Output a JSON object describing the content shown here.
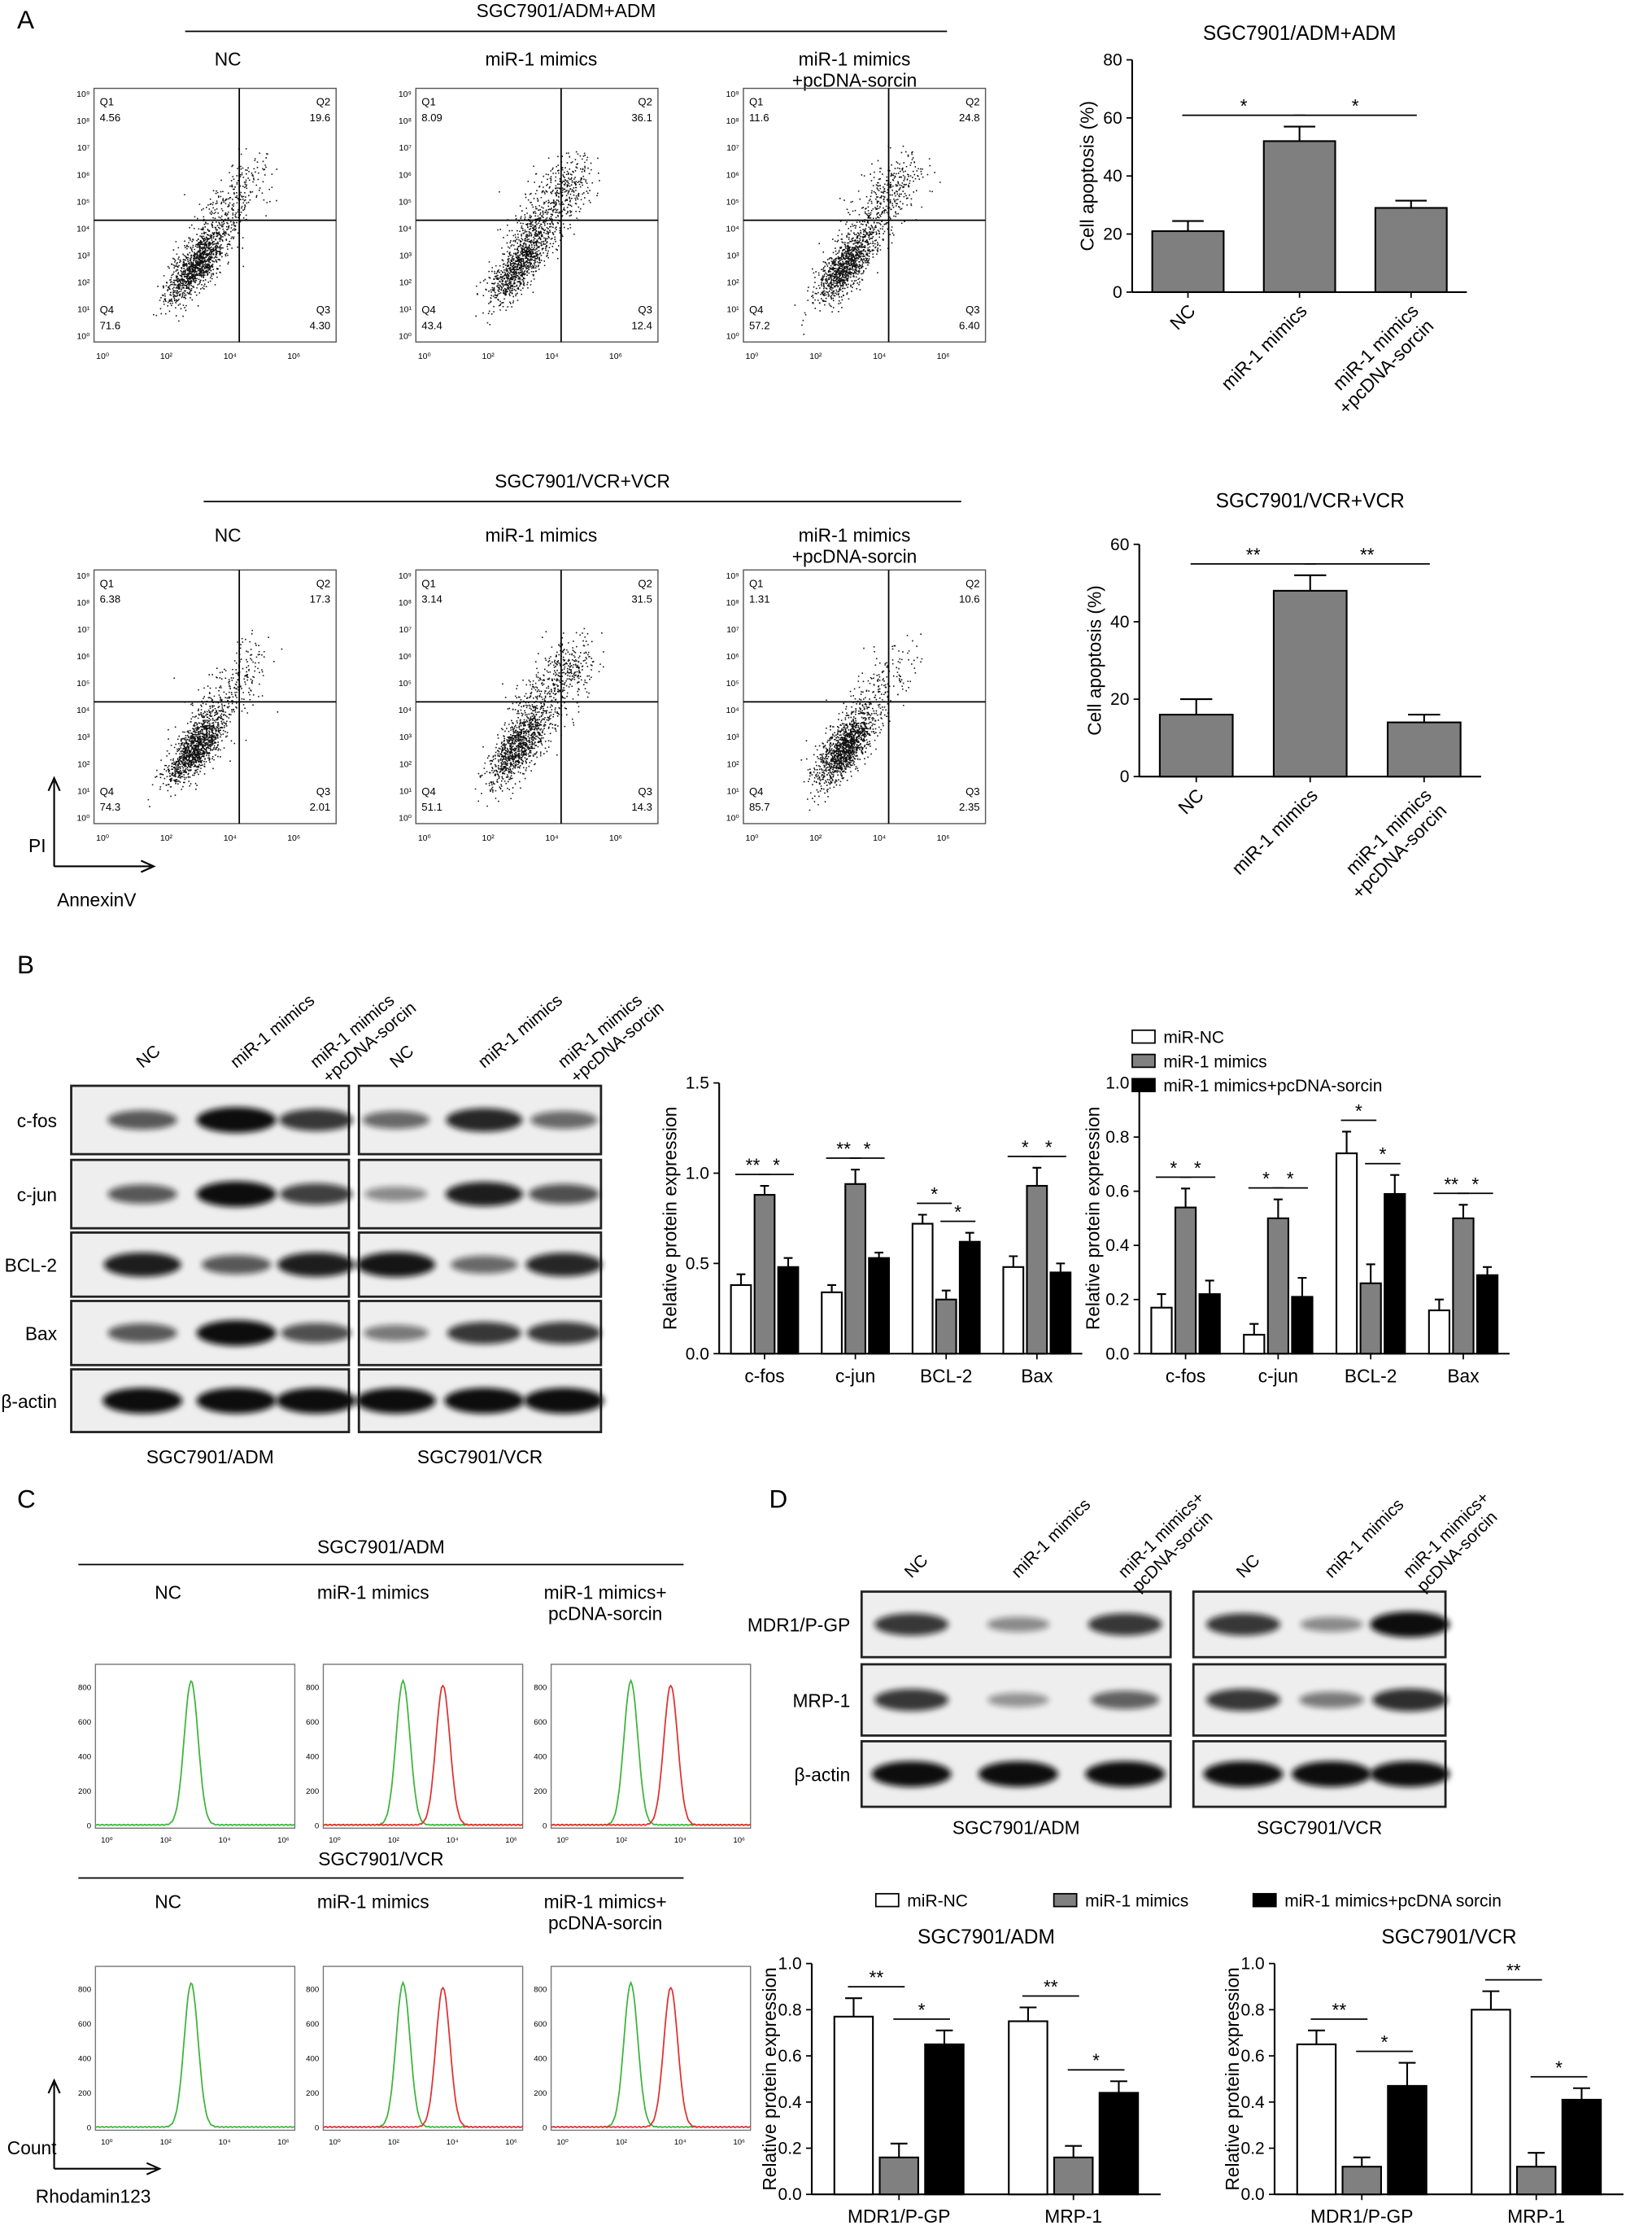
{
  "panel_labels": [
    "A",
    "B",
    "C",
    "D"
  ],
  "panel_a": {
    "y_axis": "PI",
    "x_axis": "AnnexinV",
    "xticks": [
      "10⁰",
      "10²",
      "10⁴",
      "10⁶"
    ],
    "yticks": [
      "10⁰",
      "10¹",
      "10²",
      "10³",
      "10⁴",
      "10⁵",
      "10⁶",
      "10⁷",
      "10⁸",
      "10⁹"
    ],
    "groups": [
      {
        "title": "SGC7901/ADM+ADM",
        "conditions": [
          "NC",
          "miR-1 mimics",
          "miR-1 mimics\n+pcDNA-sorcin"
        ],
        "plots": [
          {
            "quadrants": [
              {
                "name": "Q1",
                "value": "4.56"
              },
              {
                "name": "Q2",
                "value": "19.6"
              },
              {
                "name": "Q4",
                "value": "71.6"
              },
              {
                "name": "Q3",
                "value": "4.30"
              }
            ]
          },
          {
            "quadrants": [
              {
                "name": "Q1",
                "value": "8.09"
              },
              {
                "name": "Q2",
                "value": "36.1"
              },
              {
                "name": "Q4",
                "value": "43.4"
              },
              {
                "name": "Q3",
                "value": "12.4"
              }
            ]
          },
          {
            "quadrants": [
              {
                "name": "Q1",
                "value": "11.6"
              },
              {
                "name": "Q2",
                "value": "24.8"
              },
              {
                "name": "Q4",
                "value": "57.2"
              },
              {
                "name": "Q3",
                "value": "6.40"
              }
            ]
          }
        ]
      },
      {
        "title": "SGC7901/VCR+VCR",
        "conditions": [
          "NC",
          "miR-1 mimics",
          "miR-1 mimics\n+pcDNA-sorcin"
        ],
        "plots": [
          {
            "quadrants": [
              {
                "name": "Q1",
                "value": "6.38"
              },
              {
                "name": "Q2",
                "value": "17.3"
              },
              {
                "name": "Q4",
                "value": "74.3"
              },
              {
                "name": "Q3",
                "value": "2.01"
              }
            ]
          },
          {
            "quadrants": [
              {
                "name": "Q1",
                "value": "3.14"
              },
              {
                "name": "Q2",
                "value": "31.5"
              },
              {
                "name": "Q4",
                "value": "51.1"
              },
              {
                "name": "Q3",
                "value": "14.3"
              }
            ]
          },
          {
            "quadrants": [
              {
                "name": "Q1",
                "value": "1.31"
              },
              {
                "name": "Q2",
                "value": "10.6"
              },
              {
                "name": "Q4",
                "value": "85.7"
              },
              {
                "name": "Q3",
                "value": "2.35"
              }
            ]
          }
        ]
      }
    ]
  },
  "panel_b": {
    "lanes": [
      "NC",
      "miR-1 mimics",
      "miR-1 mimics\n+pcDNA-sorcin"
    ],
    "proteins": [
      "c-fos",
      "c-jun",
      "BCL-2",
      "Bax",
      "β-actin"
    ],
    "cell_lines": [
      "SGC7901/ADM",
      "SGC7901/VCR"
    ]
  },
  "panel_c": {
    "y_axis": "Count",
    "x_axis": "Rhodamin123",
    "xticks": [
      "10⁰",
      "10²",
      "10⁴",
      "10⁶"
    ],
    "yticks": [
      "0",
      "200",
      "400",
      "600",
      "800"
    ],
    "groups": [
      {
        "title": "SGC7901/ADM",
        "conditions": [
          "NC",
          "miR-1 mimics",
          "miR-1 mimics+\npcDNA-sorcin"
        ]
      },
      {
        "title": "SGC7901/VCR",
        "conditions": [
          "NC",
          "miR-1 mimics",
          "miR-1 mimics+\npcDNA-sorcin"
        ]
      }
    ]
  },
  "panel_d": {
    "lanes": [
      "NC",
      "miR-1 mimics",
      "miR-1 mimics+\npcDNA-sorcin"
    ],
    "proteins": [
      "MDR1/P-GP",
      "MRP-1",
      "β-actin"
    ],
    "cell_lines": [
      "SGC7901/ADM",
      "SGC7901/VCR"
    ]
  },
  "chart_data": [
    {
      "type": "bar",
      "title": "SGC7901/ADM+ADM",
      "y_label": "Cell apoptosis (%)",
      "categories": [
        "NC",
        "miR-1 mimics",
        "miR-1 mimics\n+pcDNA-sorcin"
      ],
      "values": [
        21,
        52,
        29
      ],
      "errors": [
        3.5,
        5,
        2.5
      ],
      "color": "#7f7f7f",
      "ylim": [
        0,
        80
      ],
      "yticks": [
        0,
        20,
        40,
        60,
        80
      ],
      "annotations": [
        "*",
        "*"
      ]
    },
    {
      "type": "bar",
      "title": "SGC7901/VCR+VCR",
      "y_label": "Cell apoptosis (%)",
      "categories": [
        "NC",
        "miR-1 mimics",
        "miR-1 mimics\n+pcDNA-sorcin"
      ],
      "values": [
        16,
        48,
        14
      ],
      "errors": [
        4,
        4,
        2
      ],
      "color": "#7f7f7f",
      "ylim": [
        0,
        60
      ],
      "yticks": [
        0,
        20,
        40,
        60
      ],
      "annotations": [
        "**",
        "**"
      ]
    },
    {
      "type": "bar",
      "y_label": "Relative protein expression",
      "categories": [
        "c-fos",
        "c-jun",
        "BCL-2",
        "Bax"
      ],
      "series": [
        {
          "name": "miR-NC",
          "color": "#ffffff",
          "values": [
            0.38,
            0.34,
            0.72,
            0.48
          ],
          "errors": [
            0.06,
            0.04,
            0.05,
            0.06
          ]
        },
        {
          "name": "miR-1 mimics",
          "color": "#808080",
          "values": [
            0.88,
            0.94,
            0.3,
            0.93
          ],
          "errors": [
            0.05,
            0.08,
            0.05,
            0.1
          ]
        },
        {
          "name": "miR-1 mimics+pcDNA-sorcin",
          "color": "#000000",
          "values": [
            0.48,
            0.53,
            0.62,
            0.45
          ],
          "errors": [
            0.05,
            0.03,
            0.05,
            0.05
          ]
        }
      ],
      "ylim": [
        0,
        1.5
      ],
      "yticks": [
        {
          "value": 0,
          "label": "0.0"
        },
        0.5,
        {
          "value": 1,
          "label": "1.0"
        },
        1.5
      ],
      "annotations": [
        "**",
        "*",
        "**",
        "*",
        "*",
        "*",
        "*",
        "*"
      ],
      "legend": false
    },
    {
      "type": "bar",
      "y_label": "Relative protein expression",
      "categories": [
        "c-fos",
        "c-jun",
        "BCL-2",
        "Bax"
      ],
      "series": [
        {
          "name": "miR-NC",
          "color": "#ffffff",
          "values": [
            0.17,
            0.07,
            0.74,
            0.16
          ],
          "errors": [
            0.05,
            0.04,
            0.08,
            0.04
          ]
        },
        {
          "name": "miR-1 mimics",
          "color": "#808080",
          "values": [
            0.54,
            0.5,
            0.26,
            0.5
          ],
          "errors": [
            0.07,
            0.07,
            0.07,
            0.05
          ]
        },
        {
          "name": "miR-1 mimics+pcDNA-sorcin",
          "color": "#000000",
          "values": [
            0.22,
            0.21,
            0.59,
            0.29
          ],
          "errors": [
            0.05,
            0.07,
            0.07,
            0.03
          ]
        }
      ],
      "ylim": [
        0,
        1
      ],
      "yticks": [
        {
          "value": 0,
          "label": "0.0"
        },
        0.2,
        0.4,
        0.6,
        0.8,
        {
          "value": 1,
          "label": "1.0"
        }
      ],
      "annotations": [
        "*",
        "*",
        "*",
        "*",
        "*",
        "*",
        "**",
        "*"
      ],
      "legend": true
    },
    {
      "type": "bar",
      "title": "SGC7901/ADM",
      "y_label": "Relative protein expression",
      "categories": [
        "MDR1/P-GP",
        "MRP-1"
      ],
      "series": [
        {
          "name": "miR-NC",
          "color": "#ffffff",
          "values": [
            0.77,
            0.75
          ],
          "errors": [
            0.08,
            0.06
          ]
        },
        {
          "name": "miR-1 mimics",
          "color": "#808080",
          "values": [
            0.16,
            0.16
          ],
          "errors": [
            0.06,
            0.05
          ]
        },
        {
          "name": "miR-1 mimics+pcDNA sorcin",
          "color": "#000000",
          "values": [
            0.65,
            0.44
          ],
          "errors": [
            0.06,
            0.05
          ]
        }
      ],
      "ylim": [
        0,
        1
      ],
      "yticks": [
        {
          "value": 0,
          "label": "0.0"
        },
        0.2,
        0.4,
        0.6,
        0.8,
        {
          "value": 1,
          "label": "1.0"
        }
      ],
      "annotations": [
        "**",
        "*",
        "**",
        "*"
      ],
      "legend": true
    },
    {
      "type": "bar",
      "title": "SGC7901/VCR",
      "y_label": "Relative protein expression",
      "categories": [
        "MDR1/P-GP",
        "MRP-1"
      ],
      "series": [
        {
          "name": "miR-NC",
          "color": "#ffffff",
          "values": [
            0.65,
            0.8
          ],
          "errors": [
            0.06,
            0.08
          ]
        },
        {
          "name": "miR-1 mimics",
          "color": "#808080",
          "values": [
            0.12,
            0.12
          ],
          "errors": [
            0.04,
            0.06
          ]
        },
        {
          "name": "miR-1 mimics+pcDNA sorcin",
          "color": "#000000",
          "values": [
            0.47,
            0.41
          ],
          "errors": [
            0.1,
            0.05
          ]
        }
      ],
      "ylim": [
        0,
        1
      ],
      "yticks": [
        {
          "value": 0,
          "label": "0.0"
        },
        0.2,
        0.4,
        0.6,
        0.8,
        {
          "value": 1,
          "label": "1.0"
        }
      ],
      "annotations": [
        "**",
        "*",
        "**",
        "*"
      ],
      "legend": false
    }
  ]
}
